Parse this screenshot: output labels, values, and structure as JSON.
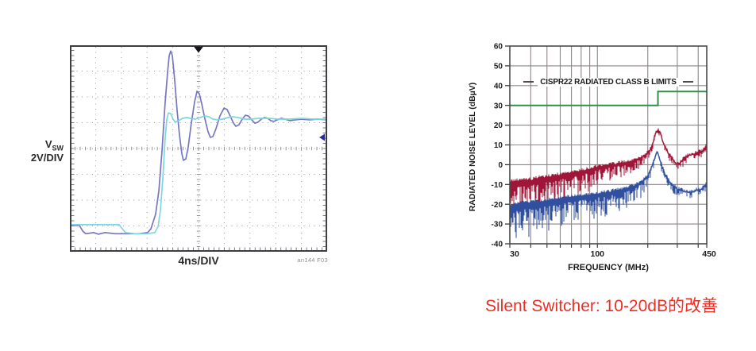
{
  "caption": {
    "text": "Silent Switcher: 10-20dB的改善",
    "color": "#ee2d24"
  },
  "chart_data": [
    {
      "id": "vsw-scope",
      "type": "line",
      "title": "",
      "ylabel_main": "V",
      "ylabel_sub": "SW",
      "ylabel_scale": "2V/DIV",
      "xlabel": "4ns/DIV",
      "fig_ref": "an144 F03",
      "divisions": {
        "x": 10,
        "y": 8
      },
      "grid": "dotted oscilloscope graticule, center cross ticks",
      "markers": {
        "trigger_x_div": 5,
        "level_marker_y_div": 3.57,
        "trigger_color": "#15151a",
        "level_marker_color": "#2b2b9e"
      },
      "frame_color": "#3d3d42",
      "grid_color": "#9a9aa0",
      "series": [
        {
          "name": "conventional-switch-node-ringing",
          "color": "#7577c2",
          "points_div": [
            [
              0,
              6.98
            ],
            [
              0.37,
              6.98
            ],
            [
              0.5,
              7.2
            ],
            [
              0.62,
              7.3
            ],
            [
              0.93,
              7.26
            ],
            [
              1.11,
              7.32
            ],
            [
              1.36,
              7.26
            ],
            [
              1.76,
              7.3
            ],
            [
              2.22,
              7.3
            ],
            [
              2.69,
              7.3
            ],
            [
              3.02,
              7.26
            ],
            [
              3.15,
              7.11
            ],
            [
              3.33,
              6.55
            ],
            [
              3.46,
              5.63
            ],
            [
              3.58,
              4.09
            ],
            [
              3.7,
              2.25
            ],
            [
              3.8,
              1.02
            ],
            [
              3.86,
              0.4
            ],
            [
              3.92,
              0.22
            ],
            [
              3.98,
              0.4
            ],
            [
              4.07,
              1.32
            ],
            [
              4.17,
              2.55
            ],
            [
              4.26,
              3.48
            ],
            [
              4.35,
              4.18
            ],
            [
              4.41,
              4.46
            ],
            [
              4.51,
              4.4
            ],
            [
              4.6,
              3.94
            ],
            [
              4.72,
              3.02
            ],
            [
              4.85,
              2.18
            ],
            [
              4.94,
              1.78
            ],
            [
              5.03,
              1.88
            ],
            [
              5.12,
              2.25
            ],
            [
              5.25,
              2.86
            ],
            [
              5.37,
              3.35
            ],
            [
              5.46,
              3.57
            ],
            [
              5.56,
              3.54
            ],
            [
              5.68,
              3.23
            ],
            [
              5.83,
              2.74
            ],
            [
              5.99,
              2.43
            ],
            [
              6.11,
              2.49
            ],
            [
              6.23,
              2.74
            ],
            [
              6.36,
              3.02
            ],
            [
              6.45,
              3.14
            ],
            [
              6.57,
              3.08
            ],
            [
              6.7,
              2.86
            ],
            [
              6.82,
              2.71
            ],
            [
              6.94,
              2.74
            ],
            [
              7.07,
              2.89
            ],
            [
              7.19,
              3.02
            ],
            [
              7.31,
              2.98
            ],
            [
              7.44,
              2.86
            ],
            [
              7.56,
              2.8
            ],
            [
              7.69,
              2.83
            ],
            [
              7.81,
              2.92
            ],
            [
              7.93,
              2.95
            ],
            [
              8.06,
              2.89
            ],
            [
              8.21,
              2.83
            ],
            [
              8.36,
              2.86
            ],
            [
              8.55,
              2.92
            ],
            [
              8.77,
              2.89
            ],
            [
              9.01,
              2.86
            ],
            [
              9.32,
              2.89
            ],
            [
              9.63,
              2.86
            ],
            [
              10,
              2.89
            ]
          ]
        },
        {
          "name": "silent-switcher-clean-edge",
          "color": "#7dd7e0",
          "points_div": [
            [
              0,
              6.95
            ],
            [
              1.91,
              6.95
            ],
            [
              2.04,
              7.11
            ],
            [
              2.16,
              7.26
            ],
            [
              2.53,
              7.3
            ],
            [
              2.99,
              7.3
            ],
            [
              3.3,
              7.26
            ],
            [
              3.43,
              7.02
            ],
            [
              3.52,
              6.4
            ],
            [
              3.61,
              5.17
            ],
            [
              3.7,
              3.63
            ],
            [
              3.77,
              2.86
            ],
            [
              3.83,
              2.62
            ],
            [
              3.92,
              2.65
            ],
            [
              4.01,
              2.86
            ],
            [
              4.1,
              2.98
            ],
            [
              4.23,
              2.92
            ],
            [
              4.38,
              2.83
            ],
            [
              4.54,
              2.8
            ],
            [
              4.69,
              2.83
            ],
            [
              4.88,
              2.86
            ],
            [
              5.06,
              2.8
            ],
            [
              5.25,
              2.74
            ],
            [
              5.4,
              2.77
            ],
            [
              5.56,
              2.86
            ],
            [
              5.74,
              2.89
            ],
            [
              5.93,
              2.86
            ],
            [
              6.14,
              2.8
            ],
            [
              6.33,
              2.77
            ],
            [
              6.54,
              2.8
            ],
            [
              6.79,
              2.86
            ],
            [
              7.04,
              2.86
            ],
            [
              7.35,
              2.83
            ],
            [
              7.72,
              2.83
            ],
            [
              8.09,
              2.86
            ],
            [
              8.55,
              2.86
            ],
            [
              9.01,
              2.83
            ],
            [
              9.48,
              2.86
            ],
            [
              10,
              2.86
            ]
          ]
        }
      ]
    },
    {
      "id": "emi-spectrum",
      "type": "line",
      "title": "CISPR22 RADIATED CLASS B LIMITS",
      "xlabel": "FREQUENCY (MHz)",
      "ylabel": "RADIATED NOISE LEVEL (dBµV)",
      "xscale": "log",
      "xlim": [
        30,
        450
      ],
      "ylim": [
        -40,
        60
      ],
      "yticks": [
        60,
        50,
        40,
        30,
        20,
        10,
        0,
        -10,
        -20,
        -30,
        -40
      ],
      "xticks": [
        {
          "v": 30,
          "label": "30"
        },
        {
          "v": 100,
          "label": "100"
        },
        {
          "v": 450,
          "label": "450"
        }
      ],
      "grid_freqs": [
        40,
        50,
        60,
        70,
        80,
        90,
        100,
        200,
        300,
        400
      ],
      "grid_color": "#8d8589",
      "frame_color": "#4a4a4a",
      "limit_line": {
        "name": "cispr22-class-b-limit",
        "color": "#2e9147",
        "points": [
          [
            30,
            30
          ],
          [
            230,
            30
          ],
          [
            230,
            37
          ],
          [
            450,
            37
          ]
        ]
      },
      "series": [
        {
          "name": "conventional-regulator-noise",
          "color": "#a01638",
          "seed": 42,
          "envelope_freq_top_spikedepth": [
            [
              30,
              -8,
              19
            ],
            [
              35,
              -7.5,
              18
            ],
            [
              40,
              -7,
              17
            ],
            [
              45,
              -6,
              16
            ],
            [
              50,
              -5.5,
              16
            ],
            [
              60,
              -4.5,
              15
            ],
            [
              70,
              -3.5,
              14
            ],
            [
              80,
              -2.5,
              13
            ],
            [
              90,
              -1.5,
              12
            ],
            [
              100,
              -0.5,
              11
            ],
            [
              110,
              0,
              10
            ],
            [
              120,
              0.5,
              9
            ],
            [
              140,
              1.5,
              8
            ],
            [
              160,
              2.5,
              7
            ],
            [
              180,
              4,
              6
            ],
            [
              200,
              6.5,
              5
            ],
            [
              210,
              9,
              4
            ],
            [
              218,
              14,
              4
            ],
            [
              225,
              17.5,
              3
            ],
            [
              232,
              18,
              3
            ],
            [
              240,
              15.5,
              3
            ],
            [
              250,
              11,
              4
            ],
            [
              260,
              8,
              4
            ],
            [
              270,
              5.5,
              4
            ],
            [
              285,
              3,
              5
            ],
            [
              300,
              1,
              5
            ],
            [
              315,
              2,
              5
            ],
            [
              330,
              4,
              4
            ],
            [
              350,
              5.5,
              4
            ],
            [
              370,
              6,
              4
            ],
            [
              390,
              6.5,
              4
            ],
            [
              410,
              7,
              4
            ],
            [
              430,
              8,
              4
            ],
            [
              450,
              10.5,
              4
            ]
          ]
        },
        {
          "name": "silent-switcher-noise",
          "color": "#31509f",
          "seed": 1337,
          "envelope_freq_top_spikedepth": [
            [
              30,
              -20,
              20
            ],
            [
              35,
              -19,
              19
            ],
            [
              40,
              -18.5,
              19
            ],
            [
              45,
              -18,
              18
            ],
            [
              50,
              -17.5,
              18
            ],
            [
              60,
              -16.5,
              17
            ],
            [
              70,
              -15.5,
              16
            ],
            [
              80,
              -15,
              15
            ],
            [
              90,
              -14.5,
              14
            ],
            [
              100,
              -14,
              13
            ],
            [
              110,
              -13.5,
              13
            ],
            [
              120,
              -13,
              12
            ],
            [
              140,
              -12,
              11
            ],
            [
              160,
              -10.5,
              10
            ],
            [
              180,
              -8.5,
              9
            ],
            [
              200,
              -5,
              7
            ],
            [
              210,
              -1,
              5
            ],
            [
              220,
              4,
              4
            ],
            [
              228,
              7.5,
              3
            ],
            [
              235,
              4,
              4
            ],
            [
              245,
              -1,
              5
            ],
            [
              255,
              -4.5,
              5
            ],
            [
              265,
              -7,
              5
            ],
            [
              280,
              -9.5,
              5
            ],
            [
              300,
              -11.5,
              4
            ],
            [
              320,
              -12.5,
              4
            ],
            [
              340,
              -13,
              4
            ],
            [
              360,
              -13,
              4
            ],
            [
              380,
              -12.5,
              4
            ],
            [
              400,
              -12,
              4
            ],
            [
              420,
              -11.5,
              4
            ],
            [
              435,
              -10.5,
              4
            ],
            [
              450,
              -9,
              4
            ]
          ]
        }
      ]
    }
  ]
}
